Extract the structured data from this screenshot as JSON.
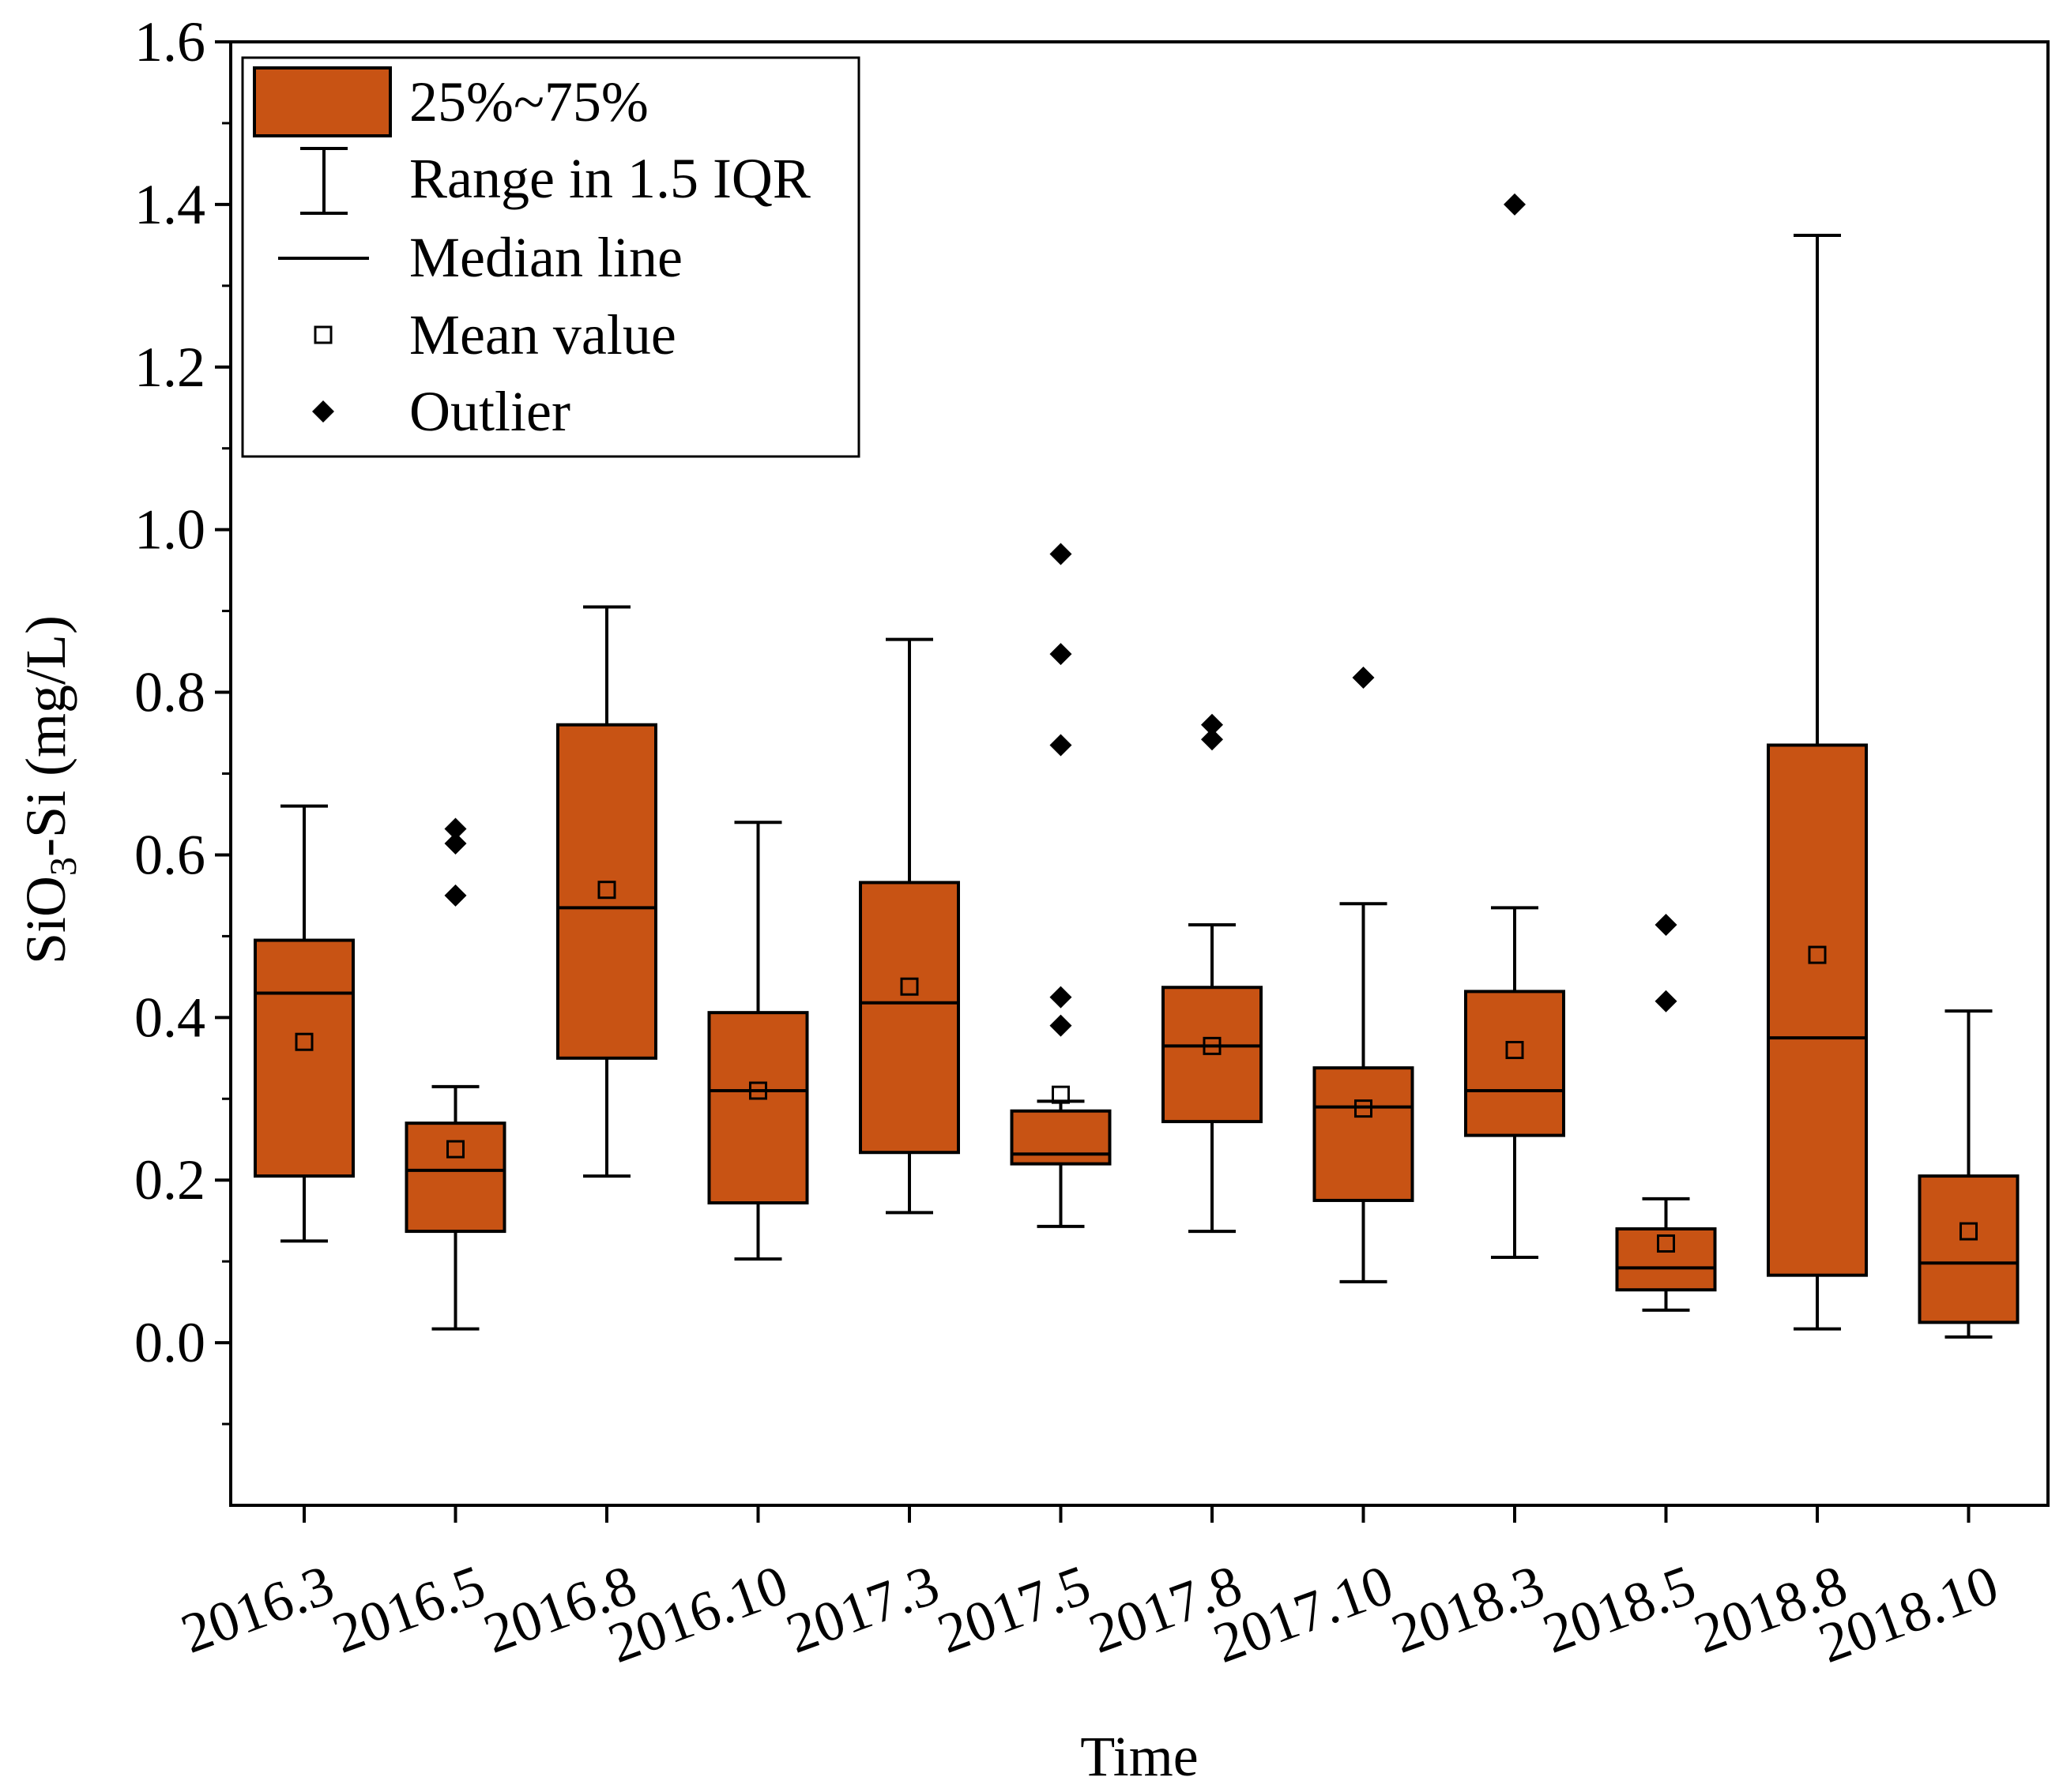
{
  "chart_data": {
    "type": "box",
    "xlabel": "Time",
    "ylabel_main": "SiO",
    "ylabel_sub": "3",
    "ylabel_rest": "-Si (mg/L)",
    "ylim": [
      -0.2,
      1.6
    ],
    "yticks": [
      "0.0",
      "0.2",
      "0.4",
      "0.6",
      "0.8",
      "1.0",
      "1.2",
      "1.4",
      "1.6"
    ],
    "categories": [
      "2016.3",
      "2016.5",
      "2016.8",
      "2016.10",
      "2017.3",
      "2017.5",
      "2017.8",
      "2017.10",
      "2018.3",
      "2018.5",
      "2018.8",
      "2018.10"
    ],
    "boxes": [
      {
        "whisker_low": 0.125,
        "q1": 0.205,
        "median": 0.43,
        "q3": 0.495,
        "whisker_high": 0.66,
        "mean": 0.37,
        "outliers": []
      },
      {
        "whisker_low": 0.017,
        "q1": 0.137,
        "median": 0.212,
        "q3": 0.27,
        "whisker_high": 0.315,
        "mean": 0.238,
        "outliers": [
          0.632,
          0.614,
          0.55
        ]
      },
      {
        "whisker_low": 0.205,
        "q1": 0.35,
        "median": 0.535,
        "q3": 0.76,
        "whisker_high": 0.905,
        "mean": 0.557,
        "outliers": []
      },
      {
        "whisker_low": 0.103,
        "q1": 0.172,
        "median": 0.31,
        "q3": 0.406,
        "whisker_high": 0.64,
        "mean": 0.31,
        "outliers": []
      },
      {
        "whisker_low": 0.16,
        "q1": 0.234,
        "median": 0.418,
        "q3": 0.566,
        "whisker_high": 0.865,
        "mean": 0.438,
        "outliers": []
      },
      {
        "whisker_low": 0.143,
        "q1": 0.22,
        "median": 0.232,
        "q3": 0.285,
        "whisker_high": 0.297,
        "mean": 0.305,
        "outliers": [
          0.97,
          0.847,
          0.735,
          0.425,
          0.39
        ]
      },
      {
        "whisker_low": 0.137,
        "q1": 0.272,
        "median": 0.365,
        "q3": 0.437,
        "whisker_high": 0.514,
        "mean": 0.365,
        "outliers": [
          0.76,
          0.742
        ]
      },
      {
        "whisker_low": 0.075,
        "q1": 0.175,
        "median": 0.29,
        "q3": 0.338,
        "whisker_high": 0.54,
        "mean": 0.288,
        "outliers": [
          0.818
        ]
      },
      {
        "whisker_low": 0.105,
        "q1": 0.255,
        "median": 0.31,
        "q3": 0.432,
        "whisker_high": 0.535,
        "mean": 0.36,
        "outliers": [
          1.4
        ]
      },
      {
        "whisker_low": 0.04,
        "q1": 0.065,
        "median": 0.092,
        "q3": 0.14,
        "whisker_high": 0.177,
        "mean": 0.122,
        "outliers": [
          0.514,
          0.42
        ]
      },
      {
        "whisker_low": 0.017,
        "q1": 0.083,
        "median": 0.375,
        "q3": 0.735,
        "whisker_high": 1.362,
        "mean": 0.477,
        "outliers": []
      },
      {
        "whisker_low": 0.007,
        "q1": 0.025,
        "median": 0.098,
        "q3": 0.205,
        "whisker_high": 0.408,
        "mean": 0.137,
        "outliers": []
      }
    ],
    "legend": {
      "placement": "top-left",
      "entries": [
        "25%~75%",
        "Range in 1.5 IQR",
        "Median line",
        "Mean value",
        "Outlier"
      ]
    }
  },
  "colors": {
    "box_fill": "#C85314",
    "stroke": "#000000",
    "background": "#FFFFFF"
  }
}
